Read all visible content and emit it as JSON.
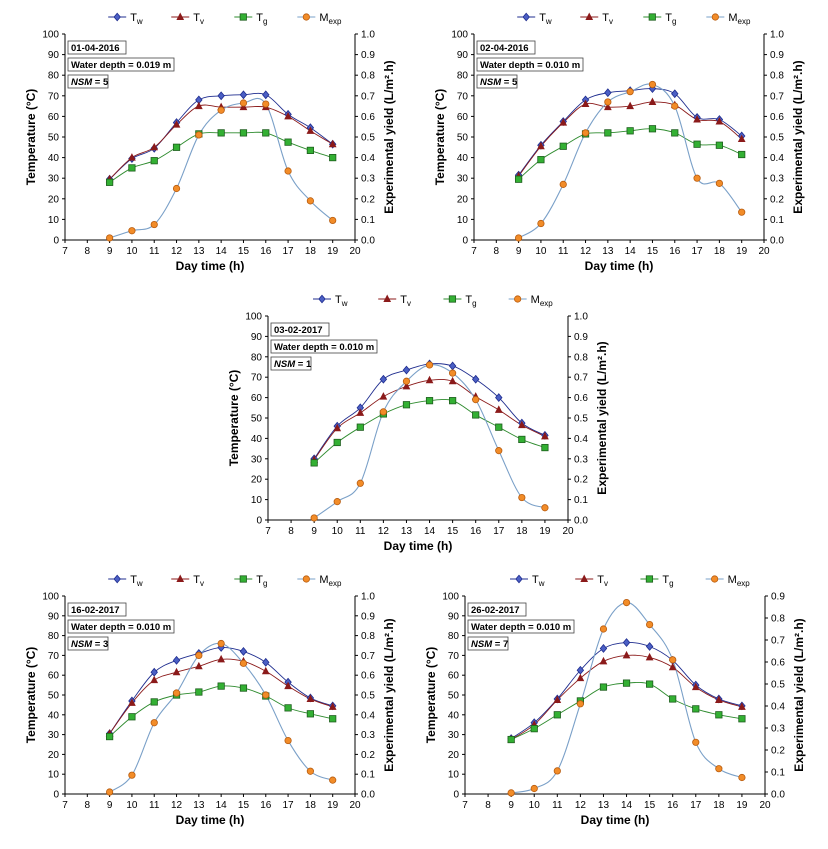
{
  "chart_data": [
    {
      "type": "line",
      "date": "01-04-2016",
      "water_depth": "Water depth = 0.019 m",
      "nsm_label": "NSM",
      "nsm_value": "= 5",
      "x": [
        9,
        10,
        11,
        12,
        13,
        14,
        15,
        16,
        17,
        18,
        19
      ],
      "xlim": [
        7,
        20
      ],
      "ylim": [
        0,
        100
      ],
      "y2lim": [
        0,
        1
      ],
      "xlabel": "Day time (h)",
      "ylabel": "Temperature (°C)",
      "y2label": "Experimental yield (L/m².h)",
      "series": [
        {
          "name": "Tw",
          "sub": "w",
          "values": [
            29.5,
            39.5,
            44.5,
            57,
            68,
            70,
            70.5,
            70.5,
            61,
            54.5,
            46.5
          ]
        },
        {
          "name": "Tv",
          "sub": "v",
          "values": [
            29.5,
            40,
            45,
            56,
            65,
            64.5,
            64.5,
            64.5,
            60,
            53,
            46.5
          ]
        },
        {
          "name": "Tg",
          "sub": "g",
          "values": [
            28,
            35,
            38.5,
            45,
            51.5,
            52,
            52,
            52,
            47.5,
            43.5,
            40
          ]
        },
        {
          "name": "Mexp",
          "sub": "exp",
          "axis": "right",
          "values": [
            0.01,
            0.045,
            0.075,
            0.25,
            0.51,
            0.63,
            0.665,
            0.66,
            0.335,
            0.19,
            0.095
          ]
        }
      ]
    },
    {
      "type": "line",
      "date": "02-04-2016",
      "water_depth": "Water depth = 0.010 m",
      "nsm_label": "NSM",
      "nsm_value": "= 5",
      "x": [
        9,
        10,
        11,
        12,
        13,
        14,
        15,
        16,
        17,
        18,
        19
      ],
      "xlim": [
        7,
        20
      ],
      "ylim": [
        0,
        100
      ],
      "y2lim": [
        0,
        1
      ],
      "xlabel": "Day time (h)",
      "ylabel": "Temperature (°C)",
      "y2label": "Experimental yield (L/m².h)",
      "series": [
        {
          "name": "Tw",
          "sub": "w",
          "values": [
            31.5,
            46,
            57.5,
            68,
            71.5,
            72.5,
            73.5,
            71,
            59.5,
            58.5,
            50.5
          ]
        },
        {
          "name": "Tv",
          "sub": "v",
          "values": [
            31,
            45.5,
            57,
            66,
            64.5,
            65,
            67,
            65.5,
            58.5,
            57.5,
            49
          ]
        },
        {
          "name": "Tg",
          "sub": "g",
          "values": [
            29.5,
            39,
            45.5,
            51.5,
            52,
            53,
            54,
            52,
            46.5,
            46,
            41.5
          ]
        },
        {
          "name": "Mexp",
          "sub": "exp",
          "axis": "right",
          "values": [
            0.01,
            0.08,
            0.27,
            0.52,
            0.67,
            0.72,
            0.755,
            0.65,
            0.3,
            0.275,
            0.135
          ]
        }
      ]
    },
    {
      "type": "line",
      "date": "03-02-2017",
      "water_depth": "Water depth = 0.010 m",
      "nsm_label": "NSM",
      "nsm_value": "= 1",
      "x": [
        9,
        10,
        11,
        12,
        13,
        14,
        15,
        16,
        17,
        18,
        19
      ],
      "xlim": [
        7,
        20
      ],
      "ylim": [
        0,
        100
      ],
      "y2lim": [
        0,
        1
      ],
      "xlabel": "Day time (h)",
      "ylabel": "Temperature (°C)",
      "y2label": "Experimental yield (L/m².h)",
      "series": [
        {
          "name": "Tw",
          "sub": "w",
          "values": [
            30,
            46,
            55,
            69,
            73.5,
            76.5,
            75.5,
            69,
            60,
            47.5,
            41.5
          ]
        },
        {
          "name": "Tv",
          "sub": "v",
          "values": [
            29.5,
            45,
            52.5,
            60.5,
            65.5,
            68.5,
            68,
            60.5,
            54,
            46.5,
            41
          ]
        },
        {
          "name": "Tg",
          "sub": "g",
          "values": [
            28,
            38,
            45.5,
            52,
            56.5,
            58.5,
            58.5,
            51.5,
            45.5,
            39.5,
            35.5
          ]
        },
        {
          "name": "Mexp",
          "sub": "exp",
          "axis": "right",
          "values": [
            0.01,
            0.09,
            0.18,
            0.53,
            0.68,
            0.76,
            0.72,
            0.59,
            0.34,
            0.11,
            0.06
          ]
        }
      ]
    },
    {
      "type": "line",
      "date": "16-02-2017",
      "water_depth": "Water depth = 0.010 m",
      "nsm_label": "NSM",
      "nsm_value": "= 3",
      "x": [
        9,
        10,
        11,
        12,
        13,
        14,
        15,
        16,
        17,
        18,
        19
      ],
      "xlim": [
        7,
        20
      ],
      "ylim": [
        0,
        100
      ],
      "y2lim": [
        0,
        1
      ],
      "xlabel": "Day time (h)",
      "ylabel": "Temperature (°C)",
      "y2label": "Experimental yield (L/m².h)",
      "series": [
        {
          "name": "Tw",
          "sub": "w",
          "values": [
            30.5,
            47,
            61.5,
            67.5,
            71,
            74,
            72,
            66.5,
            56.5,
            48.5,
            44.5
          ]
        },
        {
          "name": "Tv",
          "sub": "v",
          "values": [
            30.5,
            46,
            57.5,
            61.5,
            64.5,
            68,
            67,
            62,
            54.5,
            48,
            44
          ]
        },
        {
          "name": "Tg",
          "sub": "g",
          "values": [
            29,
            39,
            46.5,
            50,
            51.5,
            54.5,
            53.5,
            49.5,
            43.5,
            40.5,
            38
          ]
        },
        {
          "name": "Mexp",
          "sub": "exp",
          "axis": "right",
          "values": [
            0.01,
            0.095,
            0.36,
            0.51,
            0.7,
            0.76,
            0.66,
            0.5,
            0.27,
            0.115,
            0.07
          ]
        }
      ]
    },
    {
      "type": "line",
      "date": "26-02-2017",
      "water_depth": "Water depth = 0.010 m",
      "nsm_label": "NSM",
      "nsm_value": "= 7",
      "x": [
        9,
        10,
        11,
        12,
        13,
        14,
        15,
        16,
        17,
        18,
        19
      ],
      "xlim": [
        7,
        20
      ],
      "ylim": [
        0,
        100
      ],
      "y2lim": [
        0,
        0.9
      ],
      "xlabel": "Day time (h)",
      "ylabel": "Temperature (°C)",
      "y2label": "Experimental yield (L/m².h)",
      "series": [
        {
          "name": "Tw",
          "sub": "w",
          "values": [
            28,
            36,
            48,
            62.5,
            73.5,
            76.5,
            74.5,
            67.5,
            55,
            48,
            44.5
          ]
        },
        {
          "name": "Tv",
          "sub": "v",
          "values": [
            27.5,
            35,
            47.5,
            58.5,
            67,
            70,
            69,
            64,
            54,
            47.5,
            44
          ]
        },
        {
          "name": "Tg",
          "sub": "g",
          "values": [
            27.5,
            33,
            40,
            47,
            54,
            56,
            55.5,
            48,
            43,
            40,
            38
          ]
        },
        {
          "name": "Mexp",
          "sub": "exp",
          "axis": "right",
          "values": [
            0.005,
            0.025,
            0.105,
            0.41,
            0.75,
            0.87,
            0.77,
            0.61,
            0.235,
            0.115,
            0.075
          ]
        }
      ]
    }
  ],
  "styles": {
    "Tw": {
      "color": "#1f2d8f",
      "marker": "diamond",
      "fill": "#4b5fc4"
    },
    "Tv": {
      "color": "#8b1a1a",
      "marker": "triangle",
      "fill": "#8b1a1a"
    },
    "Tg": {
      "color": "#2e8b2e",
      "marker": "square",
      "fill": "#33b033"
    },
    "Mexp": {
      "color": "#7aa0c8",
      "marker": "circle",
      "fill": "#f28c28"
    }
  }
}
